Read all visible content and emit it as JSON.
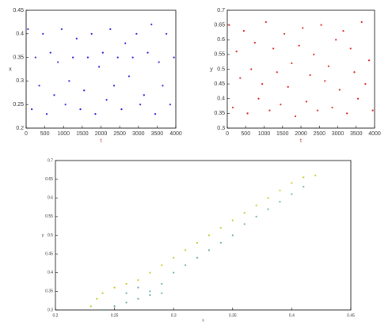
{
  "chart_data": [
    {
      "type": "scatter",
      "xlabel": "t",
      "ylabel": "x",
      "xlim": [
        0,
        4000
      ],
      "ylim": [
        0.2,
        0.45
      ],
      "xticks": [
        0,
        500,
        1000,
        1500,
        2000,
        2500,
        3000,
        3500,
        4000
      ],
      "yticks": [
        0.2,
        0.25,
        0.3,
        0.35,
        0.4,
        0.45
      ],
      "series": [
        {
          "color": "#2020e0",
          "x": [
            50,
            150,
            250,
            350,
            450,
            550,
            650,
            750,
            850,
            950,
            1050,
            1150,
            1250,
            1350,
            1450,
            1550,
            1650,
            1750,
            1850,
            1950,
            2050,
            2150,
            2250,
            2350,
            2450,
            2550,
            2650,
            2750,
            2850,
            2950,
            3050,
            3150,
            3250,
            3350,
            3450,
            3550,
            3650,
            3750,
            3850,
            3950
          ],
          "values": [
            0.41,
            0.24,
            0.35,
            0.29,
            0.4,
            0.23,
            0.36,
            0.27,
            0.34,
            0.41,
            0.25,
            0.3,
            0.35,
            0.39,
            0.24,
            0.28,
            0.35,
            0.4,
            0.23,
            0.33,
            0.36,
            0.26,
            0.41,
            0.29,
            0.35,
            0.24,
            0.38,
            0.31,
            0.35,
            0.4,
            0.25,
            0.27,
            0.36,
            0.42,
            0.23,
            0.34,
            0.29,
            0.4,
            0.25,
            0.35
          ]
        }
      ]
    },
    {
      "type": "scatter",
      "xlabel": "t",
      "ylabel": "y",
      "xlim": [
        0,
        4000
      ],
      "ylim": [
        0.3,
        0.7
      ],
      "xticks": [
        0,
        500,
        1000,
        1500,
        2000,
        2500,
        3000,
        3500,
        4000
      ],
      "yticks": [
        0.3,
        0.35,
        0.4,
        0.45,
        0.5,
        0.55,
        0.6,
        0.65,
        0.7
      ],
      "series": [
        {
          "color": "#e02020",
          "x": [
            50,
            150,
            250,
            350,
            450,
            550,
            650,
            750,
            850,
            950,
            1050,
            1150,
            1250,
            1350,
            1450,
            1550,
            1650,
            1750,
            1850,
            1950,
            2050,
            2150,
            2250,
            2350,
            2450,
            2550,
            2650,
            2750,
            2850,
            2950,
            3050,
            3150,
            3250,
            3350,
            3450,
            3550,
            3650,
            3750,
            3850,
            3950
          ],
          "values": [
            0.65,
            0.37,
            0.56,
            0.47,
            0.63,
            0.35,
            0.5,
            0.59,
            0.4,
            0.45,
            0.66,
            0.36,
            0.57,
            0.49,
            0.38,
            0.62,
            0.44,
            0.52,
            0.34,
            0.58,
            0.64,
            0.39,
            0.48,
            0.55,
            0.36,
            0.65,
            0.46,
            0.51,
            0.37,
            0.6,
            0.43,
            0.63,
            0.35,
            0.57,
            0.49,
            0.4,
            0.66,
            0.45,
            0.53,
            0.36
          ]
        }
      ]
    },
    {
      "type": "scatter",
      "xlabel": "x",
      "ylabel": "y",
      "xlim": [
        0.2,
        0.45
      ],
      "ylim": [
        0.3,
        0.7
      ],
      "xticks": [
        0.2,
        0.25,
        0.3,
        0.35,
        0.4,
        0.45
      ],
      "yticks": [
        0.3,
        0.35,
        0.4,
        0.45,
        0.5,
        0.55,
        0.6,
        0.65,
        0.7
      ],
      "series": [
        {
          "color": "#c8c820",
          "x": [
            0.23,
            0.235,
            0.24,
            0.25,
            0.26,
            0.27,
            0.28,
            0.29,
            0.3,
            0.31,
            0.32,
            0.33,
            0.34,
            0.35,
            0.36,
            0.37,
            0.38,
            0.39,
            0.4,
            0.41,
            0.42
          ],
          "values": [
            0.31,
            0.33,
            0.345,
            0.36,
            0.37,
            0.38,
            0.4,
            0.42,
            0.44,
            0.46,
            0.48,
            0.5,
            0.52,
            0.54,
            0.56,
            0.58,
            0.6,
            0.62,
            0.64,
            0.655,
            0.66
          ]
        },
        {
          "color": "#6aa8a8",
          "x": [
            0.24,
            0.25,
            0.26,
            0.27,
            0.28,
            0.29,
            0.3,
            0.31,
            0.32,
            0.33,
            0.34,
            0.35,
            0.36,
            0.37,
            0.38,
            0.39,
            0.4,
            0.41,
            0.26,
            0.28,
            0.29,
            0.27
          ],
          "values": [
            0.3,
            0.31,
            0.32,
            0.33,
            0.35,
            0.37,
            0.4,
            0.42,
            0.44,
            0.46,
            0.48,
            0.5,
            0.53,
            0.55,
            0.57,
            0.59,
            0.61,
            0.63,
            0.345,
            0.34,
            0.345,
            0.36
          ]
        }
      ]
    }
  ]
}
